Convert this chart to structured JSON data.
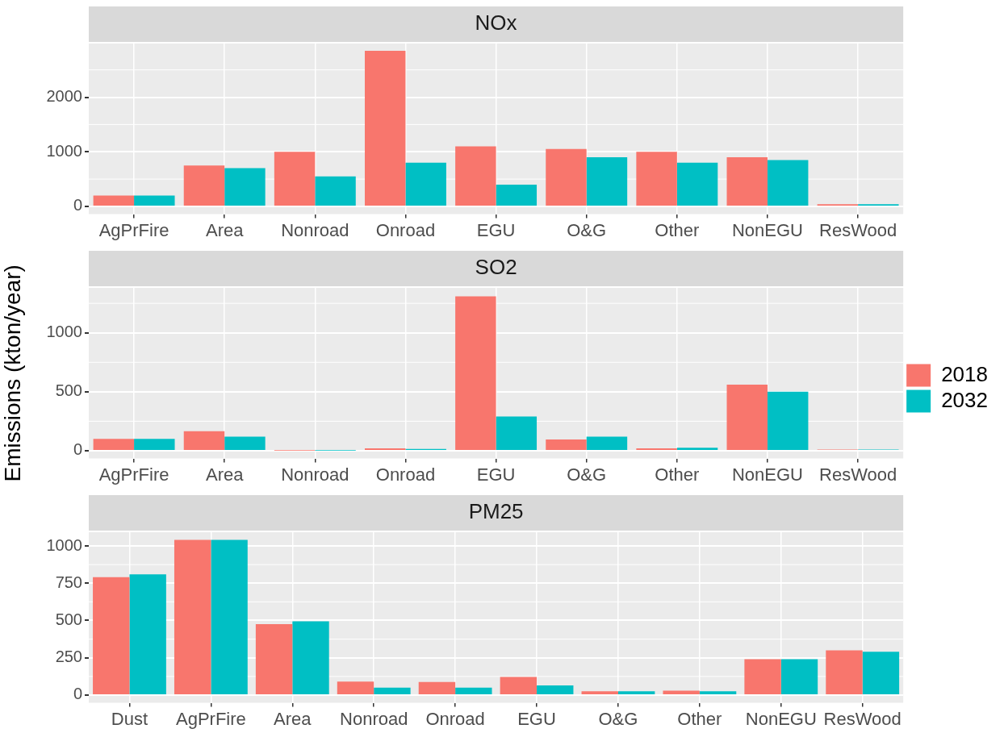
{
  "chart_data": [
    {
      "type": "bar",
      "title": "NOx",
      "categories": [
        "AgPrFire",
        "Area",
        "Nonroad",
        "Onroad",
        "EGU",
        "O&G",
        "Other",
        "NonEGU",
        "ResWood"
      ],
      "series": [
        {
          "color": "#f8766d",
          "values": [
            200,
            750,
            1000,
            2850,
            1100,
            1050,
            1000,
            900,
            40
          ]
        },
        {
          "color": "#00bfc4",
          "values": [
            200,
            700,
            550,
            800,
            400,
            900,
            800,
            850,
            40
          ]
        }
      ],
      "ylim": [
        -142,
        2982
      ],
      "yticks": [
        0,
        1000,
        2000
      ],
      "grid": true
    },
    {
      "type": "bar",
      "title": "SO2",
      "ylabel": "Emissions (kton/year)",
      "categories": [
        "AgPrFire",
        "Area",
        "Nonroad",
        "Onroad",
        "EGU",
        "O&G",
        "Other",
        "NonEGU",
        "ResWood"
      ],
      "series": [
        {
          "name": "2018",
          "color": "#f8766d",
          "values": [
            100,
            165,
            2,
            20,
            1310,
            95,
            20,
            560,
            10
          ]
        },
        {
          "name": "2032",
          "color": "#00bfc4",
          "values": [
            100,
            120,
            2,
            15,
            290,
            120,
            25,
            500,
            10
          ]
        }
      ],
      "ylim": [
        -66,
        1381
      ],
      "yticks": [
        0,
        500,
        1000
      ],
      "grid": true,
      "legend": "right"
    },
    {
      "type": "bar",
      "title": "PM25",
      "categories": [
        "Dust",
        "AgPrFire",
        "Area",
        "Nonroad",
        "Onroad",
        "EGU",
        "O&G",
        "Other",
        "NonEGU",
        "ResWood"
      ],
      "series": [
        {
          "color": "#f8766d",
          "values": [
            790,
            1040,
            475,
            90,
            88,
            122,
            25,
            30,
            240,
            300
          ]
        },
        {
          "color": "#00bfc4",
          "values": [
            810,
            1040,
            495,
            50,
            50,
            65,
            25,
            25,
            240,
            290
          ]
        }
      ],
      "ylim": [
        -52,
        1092
      ],
      "yticks": [
        0,
        250,
        500,
        750,
        1000
      ],
      "grid": true
    }
  ]
}
